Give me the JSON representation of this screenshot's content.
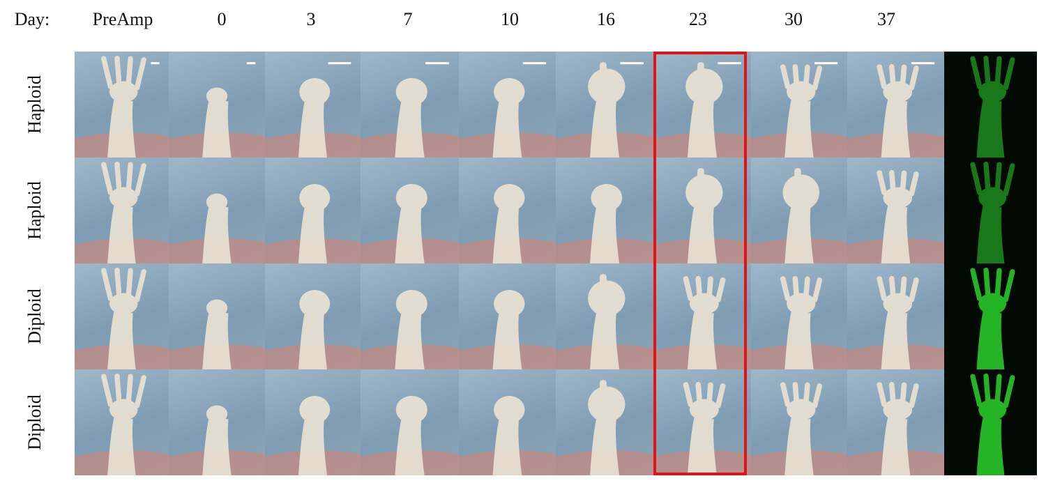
{
  "header": {
    "day_label": "Day:",
    "columns": [
      "PreAmp",
      "0",
      "3",
      "7",
      "10",
      "16",
      "23",
      "30",
      "37"
    ]
  },
  "rows": [
    {
      "label": "Haploid"
    },
    {
      "label": "Haploid"
    },
    {
      "label": "Diploid"
    },
    {
      "label": "Diploid"
    }
  ],
  "highlight": {
    "column": "23",
    "color": "#e01414"
  },
  "panel_colors": {
    "water": "#8fa8bb",
    "limb": "#e9e2d2",
    "tissue": "#d9826f",
    "gfp": "#2bd22b"
  }
}
